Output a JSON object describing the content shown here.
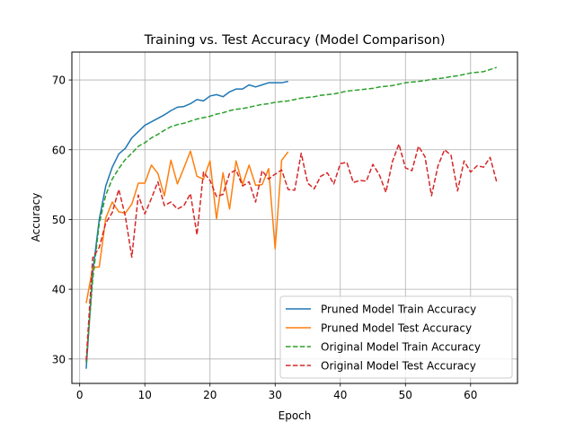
{
  "chart_data": {
    "type": "line",
    "title": "Training vs. Test Accuracy (Model Comparison)",
    "xlabel": "Epoch",
    "ylabel": "Accuracy",
    "xlim": [
      -1.2,
      67.2
    ],
    "ylim": [
      26.5,
      74.0
    ],
    "xticks": [
      0,
      10,
      20,
      30,
      40,
      50,
      60
    ],
    "yticks": [
      30,
      40,
      50,
      60,
      70
    ],
    "grid": true,
    "legend_position": "lower-right",
    "series": [
      {
        "name": "Pruned Model Train Accuracy",
        "color": "#1f77b4",
        "dash": "solid",
        "x": [
          1,
          2,
          3,
          4,
          5,
          6,
          7,
          8,
          9,
          10,
          11,
          12,
          13,
          14,
          15,
          16,
          17,
          18,
          19,
          20,
          21,
          22,
          23,
          24,
          25,
          26,
          27,
          28,
          29,
          30,
          31,
          32
        ],
        "y": [
          28.6,
          42.4,
          50.0,
          54.8,
          57.5,
          59.4,
          60.2,
          61.7,
          62.6,
          63.5,
          64.0,
          64.5,
          65.0,
          65.6,
          66.1,
          66.2,
          66.6,
          67.2,
          67.0,
          67.7,
          67.9,
          67.6,
          68.3,
          68.7,
          68.7,
          69.3,
          69.0,
          69.3,
          69.6,
          69.6,
          69.6,
          69.8
        ]
      },
      {
        "name": "Pruned Model Test Accuracy",
        "color": "#ff7f0e",
        "dash": "solid",
        "x": [
          1,
          2,
          3,
          4,
          5,
          6,
          7,
          8,
          9,
          10,
          11,
          12,
          13,
          14,
          15,
          16,
          17,
          18,
          19,
          20,
          21,
          22,
          23,
          24,
          25,
          26,
          27,
          28,
          29,
          30,
          31,
          32
        ],
        "y": [
          38.0,
          43.1,
          43.2,
          50.2,
          52.5,
          51.1,
          50.9,
          52.2,
          55.2,
          55.2,
          57.8,
          56.6,
          53.4,
          58.5,
          55.1,
          57.4,
          59.8,
          56.2,
          55.8,
          58.4,
          50.1,
          56.7,
          51.5,
          58.4,
          55.0,
          57.8,
          54.9,
          55.0,
          57.3,
          45.8,
          58.5,
          59.7
        ]
      },
      {
        "name": "Original Model Train Accuracy",
        "color": "#2ca02c",
        "dash": "dashed",
        "x": [
          1,
          2,
          3,
          4,
          5,
          6,
          7,
          8,
          9,
          10,
          11,
          12,
          13,
          14,
          15,
          16,
          17,
          18,
          19,
          20,
          21,
          22,
          23,
          24,
          25,
          26,
          27,
          28,
          29,
          30,
          31,
          32,
          33,
          34,
          35,
          36,
          37,
          38,
          39,
          40,
          41,
          42,
          43,
          44,
          45,
          46,
          47,
          48,
          49,
          50,
          51,
          52,
          53,
          54,
          55,
          56,
          57,
          58,
          59,
          60,
          61,
          62,
          63,
          64
        ],
        "y": [
          29.5,
          41.4,
          49.4,
          53.5,
          55.8,
          57.3,
          58.6,
          59.5,
          60.5,
          61.0,
          61.7,
          62.2,
          62.8,
          63.3,
          63.6,
          63.8,
          64.1,
          64.4,
          64.6,
          64.8,
          65.1,
          65.3,
          65.6,
          65.8,
          65.9,
          66.1,
          66.3,
          66.5,
          66.6,
          66.8,
          66.9,
          67.0,
          67.2,
          67.4,
          67.5,
          67.6,
          67.8,
          67.9,
          68.0,
          68.2,
          68.4,
          68.5,
          68.6,
          68.7,
          68.8,
          69.0,
          69.1,
          69.2,
          69.4,
          69.6,
          69.7,
          69.8,
          69.9,
          70.1,
          70.2,
          70.3,
          70.5,
          70.6,
          70.8,
          71.0,
          71.1,
          71.2,
          71.5,
          71.8
        ]
      },
      {
        "name": "Original Model Test Accuracy",
        "color": "#d62728",
        "dash": "dashed",
        "x": [
          1,
          2,
          3,
          4,
          5,
          6,
          7,
          8,
          9,
          10,
          11,
          12,
          13,
          14,
          15,
          16,
          17,
          18,
          19,
          20,
          21,
          22,
          23,
          24,
          25,
          26,
          27,
          28,
          29,
          30,
          31,
          32,
          33,
          34,
          35,
          36,
          37,
          38,
          39,
          40,
          41,
          42,
          43,
          44,
          45,
          46,
          47,
          48,
          49,
          50,
          51,
          52,
          53,
          54,
          55,
          56,
          57,
          58,
          59,
          60,
          61,
          62,
          63,
          64
        ],
        "y": [
          29.8,
          44.5,
          46.0,
          49.5,
          51.0,
          54.3,
          50.5,
          44.6,
          53.5,
          50.8,
          53.0,
          55.4,
          52.0,
          52.5,
          51.5,
          52.0,
          53.7,
          47.8,
          56.8,
          55.6,
          53.3,
          53.6,
          56.6,
          57.1,
          54.8,
          55.4,
          52.5,
          57.0,
          55.8,
          56.5,
          57.1,
          54.3,
          54.2,
          59.5,
          55.2,
          54.4,
          56.2,
          56.7,
          55.1,
          58.0,
          58.2,
          55.3,
          55.6,
          55.5,
          57.9,
          56.4,
          53.9,
          58.3,
          60.8,
          57.4,
          57.0,
          60.5,
          59.0,
          53.4,
          57.7,
          60.0,
          59.2,
          54.1,
          58.4,
          56.8,
          57.7,
          57.5,
          58.9,
          55.4
        ]
      }
    ]
  }
}
